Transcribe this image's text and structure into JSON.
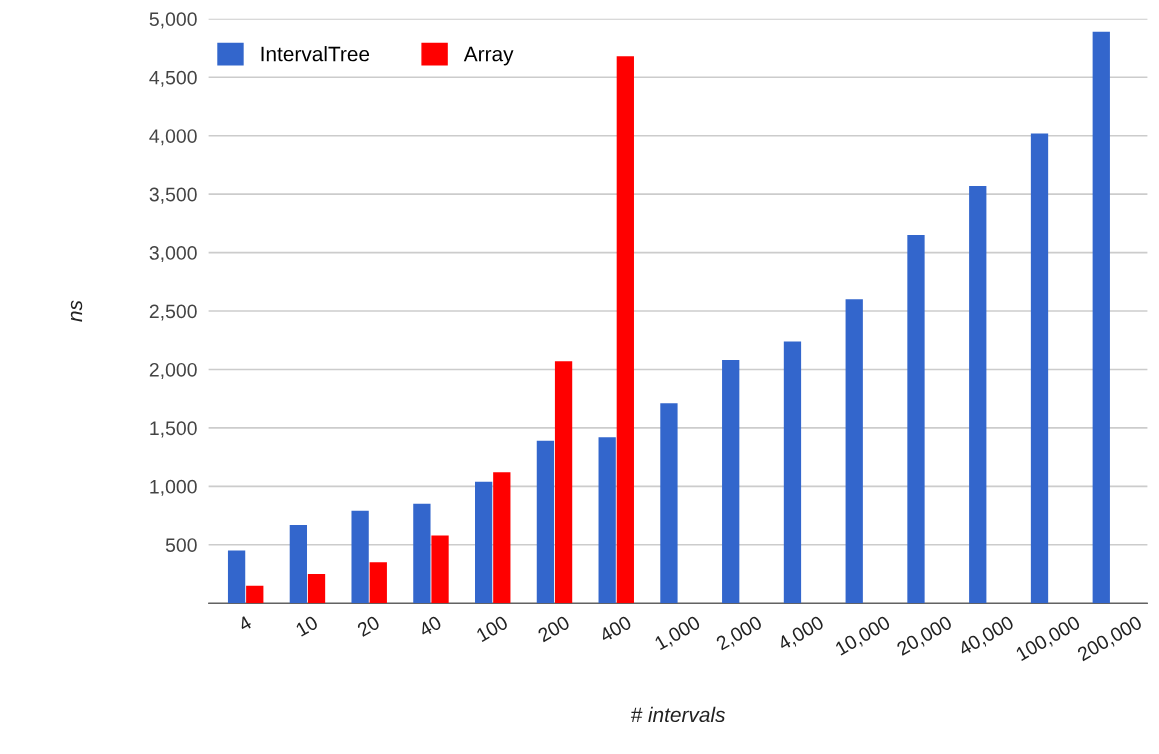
{
  "chart_data": {
    "type": "bar",
    "xlabel": "# intervals",
    "ylabel": "ns",
    "categories": [
      "4",
      "10",
      "20",
      "40",
      "100",
      "200",
      "400",
      "1,000",
      "2,000",
      "4,000",
      "10,000",
      "20,000",
      "40,000",
      "100,000",
      "200,000"
    ],
    "series": [
      {
        "name": "IntervalTree",
        "color": "#3366cc",
        "values": [
          450,
          670,
          790,
          850,
          1040,
          1390,
          1420,
          1710,
          2080,
          2240,
          2600,
          3150,
          3570,
          4020,
          4890
        ]
      },
      {
        "name": "Array",
        "color": "#ff0000",
        "values": [
          150,
          250,
          350,
          580,
          1120,
          2070,
          4680,
          null,
          null,
          null,
          null,
          null,
          null,
          null,
          null
        ]
      }
    ],
    "ylim": [
      0,
      5000
    ],
    "yticks": [
      {
        "value": 0,
        "label": null
      },
      {
        "value": 500,
        "label": "500"
      },
      {
        "value": 1000,
        "label": "1,000"
      },
      {
        "value": 1500,
        "label": "1,500"
      },
      {
        "value": 2000,
        "label": "2,000"
      },
      {
        "value": 2500,
        "label": "2,500"
      },
      {
        "value": 3000,
        "label": "3,000"
      },
      {
        "value": 3500,
        "label": "3,500"
      },
      {
        "value": 4000,
        "label": "4,000"
      },
      {
        "value": 4500,
        "label": "4,500"
      },
      {
        "value": 5000,
        "label": "5,000"
      }
    ],
    "grid": "y",
    "legend": "top left"
  }
}
